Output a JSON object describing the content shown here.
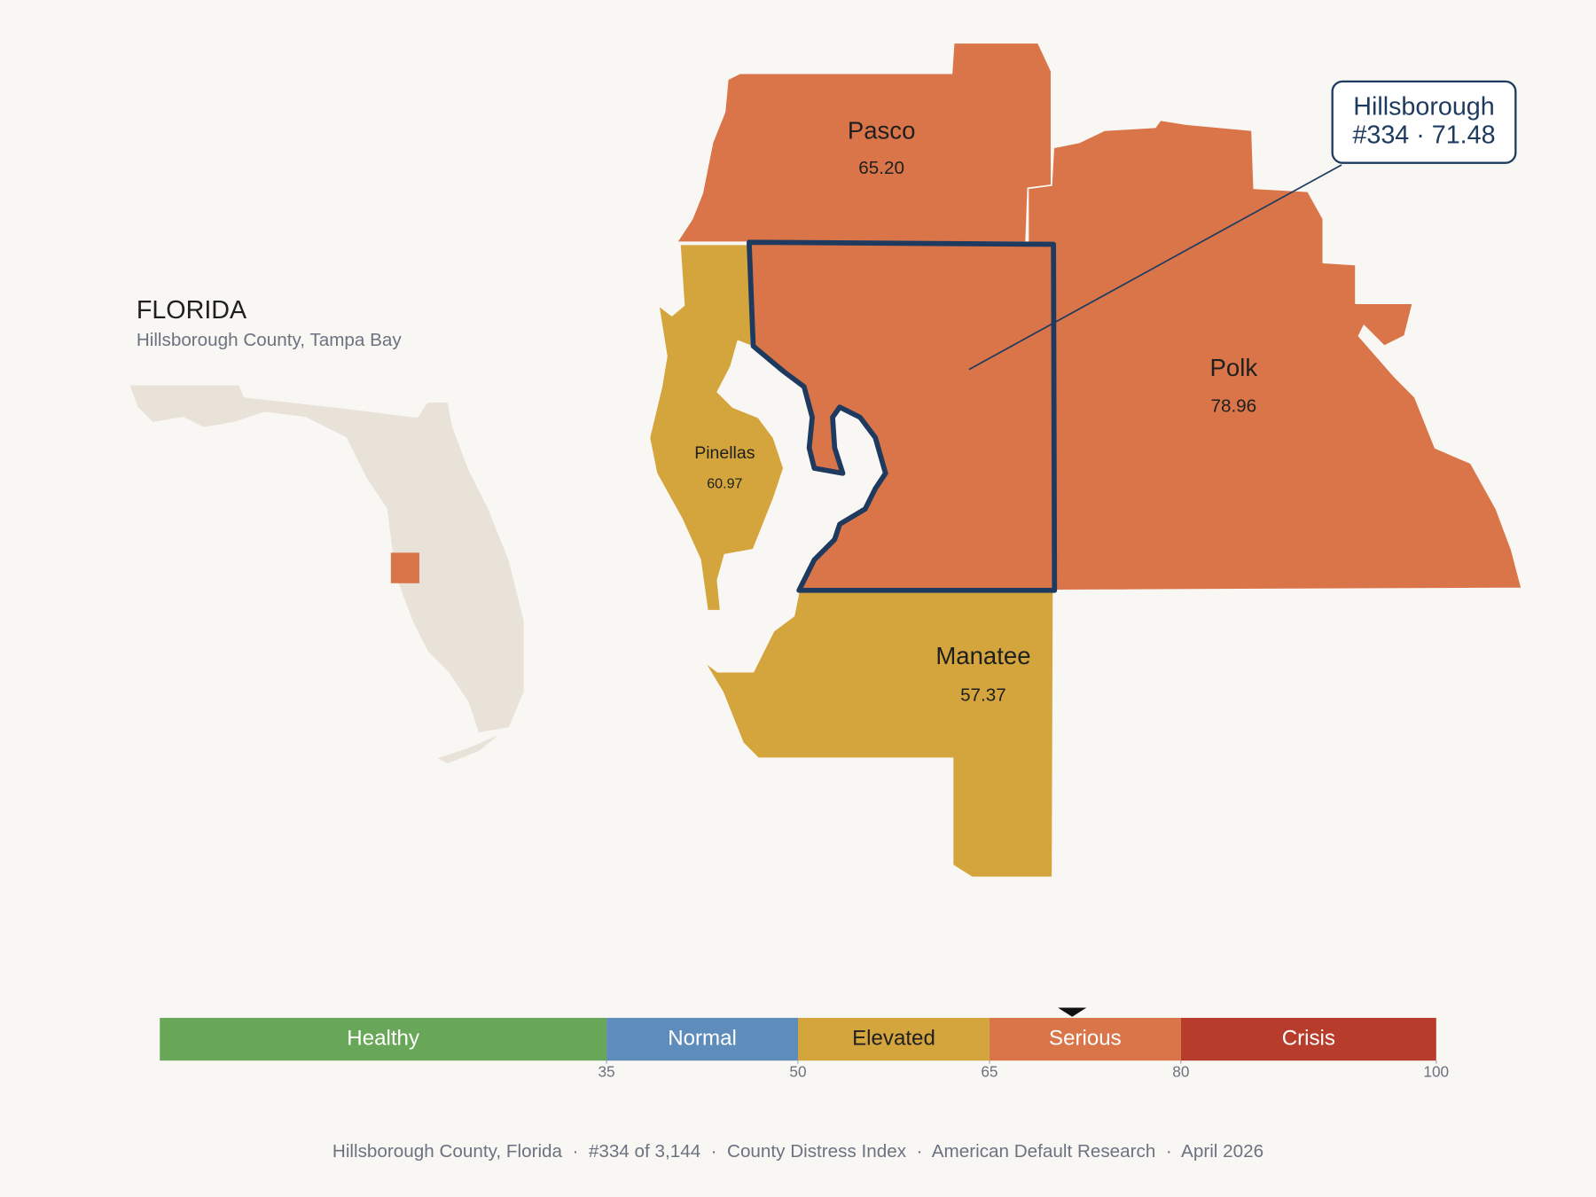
{
  "header": {
    "title": "FLORIDA",
    "subtitle": "Hillsborough County, Tampa Bay"
  },
  "counties": [
    {
      "name": "Pasco",
      "value": 65.2,
      "value_label": "65.20"
    },
    {
      "name": "Polk",
      "value": 78.96,
      "value_label": "78.96"
    },
    {
      "name": "Pinellas",
      "value": 60.97,
      "value_label": "60.97"
    },
    {
      "name": "Manatee",
      "value": 57.37,
      "value_label": "57.37"
    },
    {
      "name": "Hillsborough",
      "value": 71.48,
      "value_label": "71.48"
    }
  ],
  "callout": {
    "title": "Hillsborough",
    "text": "#334 · 71.48"
  },
  "scale": {
    "lim": [
      0,
      100
    ],
    "ticks": [
      35,
      50,
      65,
      80,
      100
    ],
    "bands": [
      {
        "name": "Healthy",
        "color": "#68a757",
        "text_color": "#ffffff"
      },
      {
        "name": "Normal",
        "color": "#5e8cbb",
        "text_color": "#ffffff"
      },
      {
        "name": "Elevated",
        "color": "#d4a53c",
        "text_color": "#1f1f1f"
      },
      {
        "name": "Serious",
        "color": "#da7549",
        "text_color": "#ffffff"
      },
      {
        "name": "Crisis",
        "color": "#b83c2b",
        "text_color": "#ffffff"
      }
    ]
  },
  "footer": "Hillsborough County, Florida  ·  #334 of 3,144  ·  County Distress Index  ·  American Default Research  ·  April 2026"
}
